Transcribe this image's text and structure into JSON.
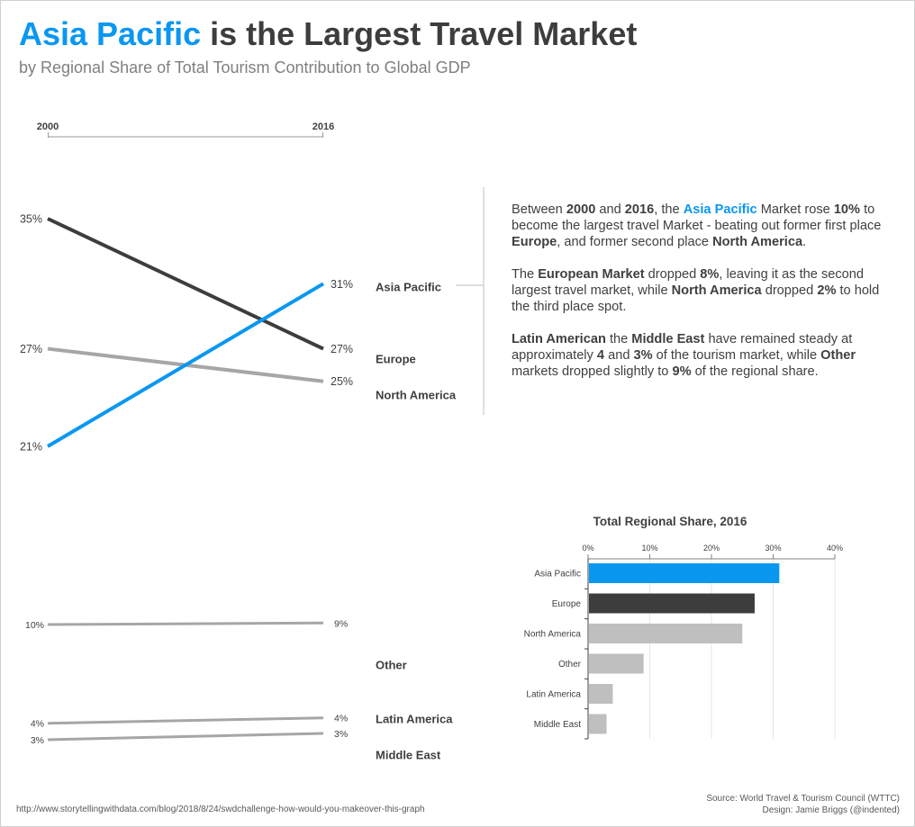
{
  "header": {
    "title_accent": "Asia Pacific",
    "title_rest": " is the Largest Travel Market",
    "subtitle": "by Regional Share of Total Tourism Contribution to Global GDP"
  },
  "narrative": {
    "p1": [
      {
        "t": "Between "
      },
      {
        "t": "2000",
        "b": true
      },
      {
        "t": " and "
      },
      {
        "t": "2016",
        "b": true
      },
      {
        "t": ", the "
      },
      {
        "t": "Asia Pacific",
        "b": true,
        "ap": true
      },
      {
        "t": " Market rose "
      },
      {
        "t": "10%",
        "b": true
      },
      {
        "t": " to become the largest travel Market - beating out former first place "
      },
      {
        "t": "Europe",
        "b": true
      },
      {
        "t": ", and former second place "
      },
      {
        "t": "North America",
        "b": true
      },
      {
        "t": "."
      }
    ],
    "p2": [
      {
        "t": "The "
      },
      {
        "t": "European Market",
        "b": true
      },
      {
        "t": " dropped "
      },
      {
        "t": "8%",
        "b": true
      },
      {
        "t": ", leaving it as the second largest travel market, while "
      },
      {
        "t": "North America",
        "b": true
      },
      {
        "t": " dropped "
      },
      {
        "t": "2%",
        "b": true
      },
      {
        "t": " to hold the third place spot."
      }
    ],
    "p3": [
      {
        "t": "Latin American",
        "b": true
      },
      {
        "t": " the "
      },
      {
        "t": "Middle East",
        "b": true
      },
      {
        "t": " have remained steady at approximately "
      },
      {
        "t": "4",
        "b": true
      },
      {
        "t": " and "
      },
      {
        "t": "3%",
        "b": true
      },
      {
        "t": " of the tourism market, while "
      },
      {
        "t": "Other",
        "b": true
      },
      {
        "t": " markets dropped slightly to "
      },
      {
        "t": "9%",
        "b": true
      },
      {
        "t": " of the regional share."
      }
    ]
  },
  "footer": {
    "url": "http://www.storytellingwithdata.com/blog/2018/8/24/swdchallenge-how-would-you-makeover-this-graph",
    "source": "Source: World Travel & Tourism Council (WTTC)",
    "design": "Design: Jamie Briggs (@indented)"
  },
  "colors": {
    "asia_pacific": "#0a97f0",
    "europe": "#3d3d3d",
    "other_regions": "#a6a6a6",
    "bars_grey": "#bfbfbf"
  },
  "chart_data": [
    {
      "type": "line",
      "chart": "slope-major",
      "x": [
        "2000",
        "2016"
      ],
      "ylim": [
        15,
        40
      ],
      "series": [
        {
          "name": "Europe",
          "values": [
            35,
            27
          ],
          "start_label": "35%",
          "end_label": "27%",
          "color": "#3d3d3d"
        },
        {
          "name": "North America",
          "values": [
            27,
            25
          ],
          "start_label": "27%",
          "end_label": "25%",
          "color": "#a6a6a6"
        },
        {
          "name": "Asia Pacific",
          "values": [
            21,
            31
          ],
          "start_label": "21%",
          "end_label": "31%",
          "color": "#0a97f0"
        }
      ]
    },
    {
      "type": "line",
      "chart": "slope-minor",
      "x": [
        "2000",
        "2016"
      ],
      "ylim": [
        0,
        15
      ],
      "series": [
        {
          "name": "Other",
          "values": [
            10,
            9
          ],
          "start_label": "10%",
          "end_label": "9%",
          "color": "#a6a6a6"
        },
        {
          "name": "Latin America",
          "values": [
            4,
            4
          ],
          "start_label": "4%",
          "end_label": "4%",
          "color": "#a6a6a6"
        },
        {
          "name": "Middle East",
          "values": [
            3,
            3
          ],
          "start_label": "3%",
          "end_label": "3%",
          "color": "#a6a6a6"
        }
      ]
    },
    {
      "type": "bar",
      "chart": "total-share",
      "orientation": "horizontal",
      "title": "Total Regional Share, 2016",
      "categories": [
        "Asia Pacific",
        "Europe",
        "North America",
        "Other",
        "Latin America",
        "Middle East"
      ],
      "values": [
        31,
        27,
        25,
        9,
        4,
        3
      ],
      "colors": [
        "#0a97f0",
        "#3d3d3d",
        "#bfbfbf",
        "#bfbfbf",
        "#bfbfbf",
        "#bfbfbf"
      ],
      "xlim": [
        0,
        40
      ],
      "ticks": [
        "0%",
        "10%",
        "20%",
        "30%",
        "40%"
      ],
      "grid": true
    }
  ]
}
